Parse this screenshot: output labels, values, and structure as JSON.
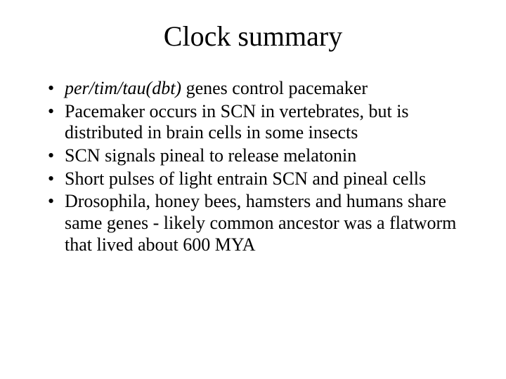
{
  "slide": {
    "background_color": "#ffffff",
    "text_color": "#000000",
    "font_family": "Times New Roman",
    "title": {
      "text": "Clock summary",
      "fontsize": 40,
      "align": "center"
    },
    "bullets": {
      "fontsize": 26,
      "marker": "•",
      "items": [
        {
          "italic_prefix": "per/tim/tau(dbt)",
          "rest": " genes control pacemaker"
        },
        {
          "italic_prefix": "",
          "rest": "Pacemaker occurs in SCN in vertebrates, but is distributed in brain cells in some insects"
        },
        {
          "italic_prefix": "",
          "rest": "SCN signals pineal to release melatonin"
        },
        {
          "italic_prefix": "",
          "rest": "Short pulses of light entrain SCN and pineal cells"
        },
        {
          "italic_prefix": "",
          "rest": "Drosophila, honey bees, hamsters and humans share same genes - likely common ancestor was a flatworm that lived about 600 MYA"
        }
      ]
    }
  }
}
